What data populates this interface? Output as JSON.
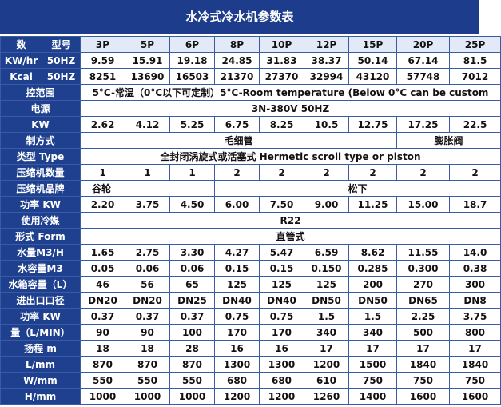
{
  "title": "水冷式冷水机参数表",
  "header": {
    "label": "数",
    "sub": "型号",
    "models": [
      "3P",
      "5P",
      "6P",
      "8P",
      "10P",
      "12P",
      "15P",
      "20P",
      "25P"
    ]
  },
  "rows": [
    {
      "label": "KW/hr",
      "sub": "50HZ",
      "cells": [
        "9.59",
        "15.91",
        "19.18",
        "24.85",
        "31.83",
        "38.37",
        "50.14",
        "67.14",
        "81.5"
      ]
    },
    {
      "label": "Kcal",
      "sub": "50HZ",
      "cells": [
        "8251",
        "13690",
        "16503",
        "21370",
        "27370",
        "32994",
        "43120",
        "57748",
        "7012"
      ]
    },
    {
      "label": "控范围",
      "cells": [
        "5°C-常温（0°C以下可定制）5°C-Room temperature (Below 0°C can be custom"
      ]
    },
    {
      "label": "电源",
      "cells": [
        "3N-380V 50HZ"
      ]
    },
    {
      "label": "KW",
      "cells": [
        "2.62",
        "4.12",
        "5.25",
        "6.75",
        "8.25",
        "10.5",
        "12.75",
        "17.25",
        "22.5"
      ]
    },
    {
      "label": "制方式",
      "cells": [
        "毛细管",
        "膨胀阀"
      ]
    },
    {
      "label": "类型 Type",
      "cells": [
        "全封闭涡旋式或活塞式 Hermetic scroll type or piston"
      ]
    },
    {
      "label": "压缩机数量",
      "cells": [
        "1",
        "1",
        "1",
        "2",
        "2",
        "2",
        "2",
        "2",
        "2"
      ]
    },
    {
      "label": "压缩机品牌",
      "cells": [
        "谷轮",
        "松下"
      ]
    },
    {
      "label": "功率 KW",
      "cells": [
        "2.20",
        "3.75",
        "4.50",
        "6.00",
        "7.50",
        "9.00",
        "11.25",
        "15.00",
        "18.7"
      ]
    },
    {
      "label": "使用冷媒",
      "cells": [
        "R22"
      ]
    },
    {
      "label": "形式 Form",
      "cells": [
        "直管式"
      ]
    },
    {
      "label": "水量M3/H",
      "cells": [
        "1.65",
        "2.75",
        "3.30",
        "4.27",
        "5.47",
        "6.59",
        "8.62",
        "11.55",
        "14.0"
      ]
    },
    {
      "label": "水容量M3",
      "cells": [
        "0.05",
        "0.06",
        "0.06",
        "0.15",
        "0.15",
        "0.150",
        "0.285",
        "0.300",
        "0.38"
      ]
    },
    {
      "label": "水箱容量（L）",
      "cells": [
        "46",
        "56",
        "65",
        "125",
        "125",
        "125",
        "200",
        "270",
        "300"
      ]
    },
    {
      "label": "进出口口径",
      "cells": [
        "DN20",
        "DN20",
        "DN25",
        "DN40",
        "DN40",
        "DN50",
        "DN50",
        "DN65",
        "DN8"
      ]
    },
    {
      "label": "功率 KW",
      "cells": [
        "0.37",
        "0.37",
        "0.37",
        "0.75",
        "0.75",
        "1.5",
        "1.5",
        "2.25",
        "3.75"
      ]
    },
    {
      "label": "量（L/MIN）",
      "cells": [
        "90",
        "90",
        "100",
        "170",
        "170",
        "340",
        "340",
        "500",
        "800"
      ]
    },
    {
      "label": "扬程 m",
      "cells": [
        "18",
        "18",
        "28",
        "16",
        "16",
        "17",
        "17",
        "17",
        "17"
      ]
    },
    {
      "label": "L/mm",
      "cells": [
        "870",
        "870",
        "870",
        "1300",
        "1300",
        "1200",
        "1500",
        "1840",
        "1840"
      ]
    },
    {
      "label": "W/mm",
      "cells": [
        "550",
        "550",
        "550",
        "680",
        "680",
        "610",
        "750",
        "750",
        "750"
      ]
    },
    {
      "label": "H/mm",
      "cells": [
        "1000",
        "1000",
        "1000",
        "1200",
        "1200",
        "1260",
        "1400",
        "1600",
        "1600"
      ]
    }
  ]
}
